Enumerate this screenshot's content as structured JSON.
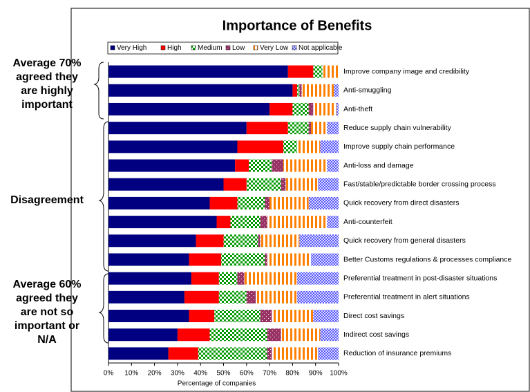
{
  "chart_data": {
    "type": "stacked_barh",
    "title": "Importance of Benefits",
    "xlabel": "Percentage of companies",
    "categories": [
      "Improve company image and credibility",
      "Anti-smuggling",
      "Anti-theft",
      "Reduce supply chain vulnerability",
      "Improve supply chain performance",
      "Anti-loss and damage",
      "Fast/stable/predictable border crossing process",
      "Quick recovery from direct disasters",
      "Anti-counterfeit",
      "Quick recovery from general disasters",
      "Better Customs regulations & processes compliance",
      "Preferential treatment in post-disaster situations",
      "Preferential treatment in alert situations",
      "Direct cost savings",
      "Indirect cost savings",
      "Reduction of insurance premiums"
    ],
    "series": [
      {
        "name": "Very High",
        "color": "#000080",
        "pattern": "solid",
        "values": [
          78,
          80,
          70,
          60,
          56,
          55,
          50,
          44,
          47,
          38,
          35,
          36,
          33,
          35,
          30,
          26
        ]
      },
      {
        "name": "High",
        "color": "#ff0000",
        "pattern": "solid",
        "values": [
          11,
          2,
          10,
          18,
          20,
          6,
          10,
          12,
          6,
          12,
          14,
          12,
          15,
          11,
          14,
          13
        ]
      },
      {
        "name": "Medium",
        "color": "#009900",
        "pattern": "checker",
        "values": [
          4,
          1,
          7,
          9,
          6,
          10,
          15,
          12,
          13,
          15,
          19,
          8,
          12,
          20,
          25,
          30
        ]
      },
      {
        "name": "Low",
        "color": "#993366",
        "pattern": "dots",
        "values": [
          0,
          1,
          2,
          1,
          0,
          5,
          2,
          2,
          3,
          1,
          1,
          3,
          4,
          5,
          6,
          2
        ]
      },
      {
        "name": "Very Low",
        "color": "#ff8000",
        "pattern": "stripes",
        "values": [
          7,
          14,
          10,
          7,
          10,
          19,
          14,
          17,
          26,
          17,
          19,
          23,
          18,
          18,
          17,
          20
        ]
      },
      {
        "name": "Not applicable",
        "color": "#3333ff",
        "pattern": "cross",
        "values": [
          0,
          2,
          1,
          5,
          8,
          5,
          9,
          13,
          5,
          17,
          12,
          18,
          18,
          11,
          8,
          9
        ]
      }
    ],
    "xlim": [
      0,
      100
    ],
    "xticks": [
      {
        "value": 0,
        "label": "0%"
      },
      {
        "value": 10,
        "label": "10%"
      },
      {
        "value": 20,
        "label": "20%"
      },
      {
        "value": 30,
        "label": "30%"
      },
      {
        "value": 40,
        "label": "40%"
      },
      {
        "value": 50,
        "label": "50%"
      },
      {
        "value": 60,
        "label": "60%"
      },
      {
        "value": 70,
        "label": "70%"
      },
      {
        "value": 80,
        "label": "80%"
      },
      {
        "value": 90,
        "label": "90%"
      },
      {
        "value": 100,
        "label": "100%"
      }
    ],
    "annotations": [
      {
        "lines": [
          "Average 70%",
          "agreed they",
          "are highly",
          "important"
        ]
      },
      {
        "lines": [
          "Disagreement"
        ]
      },
      {
        "lines": [
          "Average 60%",
          "agreed they",
          "are not so",
          "important or",
          "N/A"
        ]
      }
    ]
  }
}
